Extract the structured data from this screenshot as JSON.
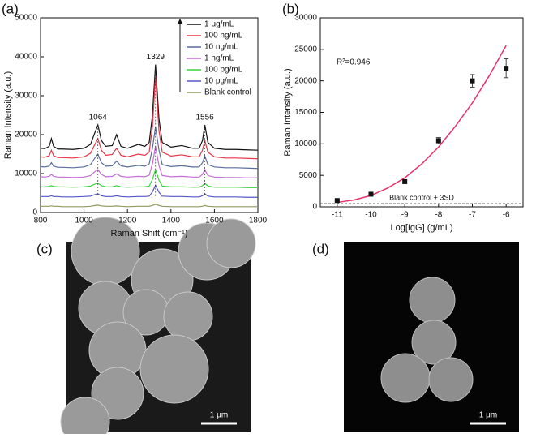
{
  "chart_data": [
    {
      "type": "line",
      "panel_label": "(a)",
      "x_label": "Raman Shift (cm⁻¹)",
      "y_label": "Raman Intensity (a.u.)",
      "xlim": [
        800,
        1800
      ],
      "ylim": [
        0,
        50000
      ],
      "xticks": [
        800,
        1000,
        1200,
        1400,
        1600,
        1800
      ],
      "yticks": [
        0,
        10000,
        20000,
        30000,
        40000,
        50000
      ],
      "x": [
        800,
        820,
        840,
        850,
        860,
        880,
        900,
        950,
        1000,
        1030,
        1050,
        1064,
        1080,
        1100,
        1130,
        1150,
        1170,
        1200,
        1250,
        1280,
        1300,
        1315,
        1329,
        1345,
        1360,
        1400,
        1450,
        1500,
        1530,
        1545,
        1556,
        1570,
        1600,
        1650,
        1700,
        1750,
        1800
      ],
      "peak_labels": [
        1064,
        1329,
        1556
      ],
      "series": [
        {
          "name": "1 μg/mL",
          "color": "#111111",
          "values": [
            16500,
            16400,
            17000,
            19000,
            17000,
            16300,
            16300,
            16200,
            16500,
            17500,
            20500,
            22500,
            18500,
            17000,
            17200,
            20000,
            17000,
            16500,
            17500,
            17000,
            18000,
            25000,
            38000,
            24000,
            18000,
            16800,
            17200,
            16500,
            16500,
            18500,
            22500,
            18000,
            16500,
            16200,
            16200,
            16100,
            16000
          ]
        },
        {
          "name": "100 ng/mL",
          "color": "#e8364a",
          "values": [
            14300,
            14200,
            14600,
            16000,
            14600,
            14100,
            14100,
            14000,
            14300,
            15200,
            17500,
            19000,
            16000,
            14700,
            14900,
            16500,
            14700,
            14300,
            15000,
            14700,
            15500,
            22000,
            35000,
            21000,
            15500,
            14500,
            14800,
            14300,
            14300,
            16000,
            18500,
            15500,
            14300,
            14000,
            14000,
            13900,
            13800
          ]
        },
        {
          "name": "10 ng/mL",
          "color": "#5a6f9b",
          "values": [
            11800,
            11700,
            11900,
            12800,
            11900,
            11600,
            11600,
            11500,
            11700,
            12300,
            14000,
            15000,
            12800,
            11900,
            12000,
            13200,
            12000,
            11700,
            12100,
            11900,
            12500,
            16500,
            22000,
            16000,
            12300,
            11800,
            12000,
            11700,
            11700,
            12800,
            14500,
            12300,
            11700,
            11500,
            11500,
            11400,
            11300
          ]
        },
        {
          "name": "1 ng/mL",
          "color": "#c46fd6",
          "values": [
            9200,
            9100,
            9300,
            9800,
            9300,
            9100,
            9100,
            9000,
            9100,
            9500,
            10500,
            11000,
            9800,
            9200,
            9300,
            9900,
            9300,
            9100,
            9300,
            9200,
            9600,
            12500,
            17000,
            12000,
            9500,
            9200,
            9300,
            9100,
            9100,
            9800,
            11000,
            9500,
            9100,
            9000,
            9000,
            8900,
            8900
          ]
        },
        {
          "name": "100 pg/mL",
          "color": "#3fd13f",
          "values": [
            6600,
            6600,
            6700,
            6900,
            6700,
            6600,
            6600,
            6500,
            6600,
            6800,
            7300,
            7500,
            6900,
            6600,
            6600,
            6900,
            6600,
            6500,
            6600,
            6600,
            6800,
            8500,
            11000,
            8300,
            6800,
            6600,
            6600,
            6500,
            6500,
            6900,
            7500,
            6800,
            6500,
            6500,
            6500,
            6400,
            6400
          ]
        },
        {
          "name": "10 pg/mL",
          "color": "#5656c8",
          "values": [
            4100,
            4100,
            4100,
            4300,
            4100,
            4100,
            4000,
            4000,
            4100,
            4200,
            4600,
            4800,
            4300,
            4100,
            4100,
            4300,
            4100,
            4000,
            4100,
            4100,
            4200,
            5300,
            7000,
            5200,
            4200,
            4100,
            4100,
            4000,
            4000,
            4300,
            4800,
            4200,
            4000,
            4000,
            4000,
            3900,
            3900
          ]
        },
        {
          "name": "Blank control",
          "color": "#8e9a62",
          "values": [
            1600,
            1600,
            1600,
            1700,
            1600,
            1600,
            1500,
            1500,
            1500,
            1600,
            1800,
            1900,
            1700,
            1600,
            1600,
            1700,
            1600,
            1500,
            1600,
            1600,
            1600,
            1800,
            2100,
            1800,
            1600,
            1500,
            1500,
            1500,
            1500,
            1600,
            1800,
            1600,
            1500,
            1500,
            1500,
            1500,
            1500
          ]
        }
      ]
    },
    {
      "type": "scatter",
      "panel_label": "(b)",
      "x_label": "Log[IgG] (g/mL)",
      "y_label": "Raman Intensity (a.u.)",
      "xlim": [
        -11.5,
        -5.5
      ],
      "ylim": [
        0,
        30000
      ],
      "xticks": [
        -11,
        -10,
        -9,
        -8,
        -7,
        -6
      ],
      "yticks": [
        0,
        5000,
        10000,
        15000,
        20000,
        25000,
        30000
      ],
      "x": [
        -11,
        -10,
        -9,
        -8,
        -7,
        -6
      ],
      "values": [
        1000,
        2000,
        4000,
        10500,
        20000,
        22000
      ],
      "errors": [
        100,
        150,
        250,
        500,
        1000,
        1500
      ],
      "color": "#111111",
      "fit": {
        "color": "#e8336b",
        "x": [
          -11,
          -10.5,
          -10,
          -9.5,
          -9,
          -8.5,
          -8,
          -7.5,
          -7,
          -6.5,
          -6
        ],
        "values": [
          700,
          1100,
          1800,
          3000,
          4600,
          6800,
          9500,
          12800,
          16500,
          20800,
          25600
        ]
      },
      "r_squared": "R²=0.946",
      "blank_label": "Blank control + 3SD",
      "blank_level": 500
    }
  ],
  "images": [
    {
      "panel_label": "(c)",
      "scale_bar": "1 μm"
    },
    {
      "panel_label": "(d)",
      "scale_bar": "1 μm"
    }
  ]
}
